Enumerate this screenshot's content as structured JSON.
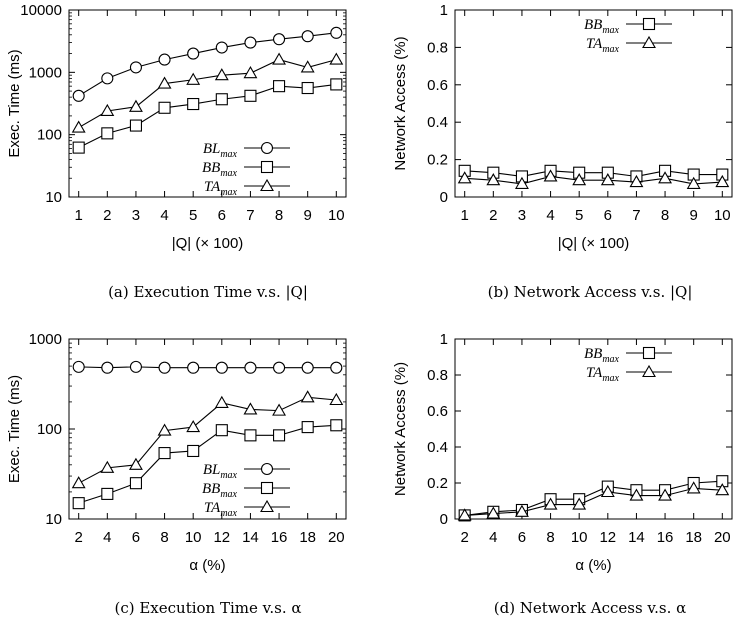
{
  "chart_data": [
    {
      "id": "a",
      "type": "line",
      "caption": "(a) Execution Time v.s. |Q|",
      "ylabel": "Exec. Time (ms)",
      "xlabel": "|Q| (× 100)",
      "y_scale": "log",
      "ylim": [
        10,
        10000
      ],
      "yticks": [
        10,
        100,
        1000,
        10000
      ],
      "ytick_labels": [
        "10",
        "100",
        "1000",
        "10000"
      ],
      "xticks": [
        1,
        2,
        3,
        4,
        5,
        6,
        7,
        8,
        9,
        10
      ],
      "xtick_labels": [
        "1",
        "2",
        "3",
        "4",
        "5",
        "6",
        "7",
        "8",
        "9",
        "10"
      ],
      "legend_position": "bottom-right",
      "series": [
        {
          "name": "BL",
          "sub": "max",
          "marker": "circle",
          "x": [
            1,
            2,
            3,
            4,
            5,
            6,
            7,
            8,
            9,
            10
          ],
          "y": [
            420,
            800,
            1200,
            1600,
            2000,
            2500,
            3000,
            3400,
            3800,
            4300
          ]
        },
        {
          "name": "BB",
          "sub": "max",
          "marker": "square",
          "x": [
            1,
            2,
            3,
            4,
            5,
            6,
            7,
            8,
            9,
            10
          ],
          "y": [
            62,
            105,
            140,
            270,
            310,
            370,
            420,
            600,
            560,
            640
          ]
        },
        {
          "name": "TA",
          "sub": "max",
          "marker": "triangle",
          "x": [
            1,
            2,
            3,
            4,
            5,
            6,
            7,
            8,
            9,
            10
          ],
          "y": [
            130,
            240,
            280,
            660,
            760,
            900,
            970,
            1600,
            1200,
            1600
          ]
        }
      ]
    },
    {
      "id": "b",
      "type": "line",
      "caption": "(b) Network Access v.s. |Q|",
      "ylabel": "Network Access (%)",
      "xlabel": "|Q| (× 100)",
      "y_scale": "linear",
      "ylim": [
        0,
        1
      ],
      "yticks": [
        0,
        0.2,
        0.4,
        0.6,
        0.8,
        1
      ],
      "ytick_labels": [
        "0",
        "0.2",
        "0.4",
        "0.6",
        "0.8",
        "1"
      ],
      "xticks": [
        1,
        2,
        3,
        4,
        5,
        6,
        7,
        8,
        9,
        10
      ],
      "xtick_labels": [
        "1",
        "2",
        "3",
        "4",
        "5",
        "6",
        "7",
        "8",
        "9",
        "10"
      ],
      "legend_position": "top-right",
      "series": [
        {
          "name": "BB",
          "sub": "max",
          "marker": "square",
          "x": [
            1,
            2,
            3,
            4,
            5,
            6,
            7,
            8,
            9,
            10
          ],
          "y": [
            0.14,
            0.13,
            0.11,
            0.14,
            0.13,
            0.13,
            0.11,
            0.14,
            0.12,
            0.12
          ]
        },
        {
          "name": "TA",
          "sub": "max",
          "marker": "triangle",
          "x": [
            1,
            2,
            3,
            4,
            5,
            6,
            7,
            8,
            9,
            10
          ],
          "y": [
            0.1,
            0.09,
            0.07,
            0.11,
            0.09,
            0.09,
            0.08,
            0.1,
            0.07,
            0.08
          ]
        }
      ]
    },
    {
      "id": "c",
      "type": "line",
      "caption": "(c) Execution Time v.s. α",
      "ylabel": "Exec. Time (ms)",
      "xlabel": "α (%)",
      "y_scale": "log",
      "ylim": [
        10,
        1000
      ],
      "yticks": [
        10,
        100,
        1000
      ],
      "ytick_labels": [
        "10",
        "100",
        "1000"
      ],
      "xticks": [
        2,
        4,
        6,
        8,
        10,
        12,
        14,
        16,
        18,
        20
      ],
      "xtick_labels": [
        "2",
        "4",
        "6",
        "8",
        "10",
        "12",
        "14",
        "16",
        "18",
        "20"
      ],
      "legend_position": "bottom-right",
      "series": [
        {
          "name": "BL",
          "sub": "max",
          "marker": "circle",
          "x": [
            2,
            4,
            6,
            8,
            10,
            12,
            14,
            16,
            18,
            20
          ],
          "y": [
            490,
            480,
            490,
            480,
            480,
            480,
            480,
            480,
            480,
            480
          ]
        },
        {
          "name": "BB",
          "sub": "max",
          "marker": "square",
          "x": [
            2,
            4,
            6,
            8,
            10,
            12,
            14,
            16,
            18,
            20
          ],
          "y": [
            15,
            19,
            25,
            54,
            57,
            97,
            85,
            85,
            105,
            110
          ]
        },
        {
          "name": "TA",
          "sub": "max",
          "marker": "triangle",
          "x": [
            2,
            4,
            6,
            8,
            10,
            12,
            14,
            16,
            18,
            20
          ],
          "y": [
            25,
            37,
            40,
            96,
            105,
            195,
            165,
            160,
            225,
            210
          ]
        }
      ]
    },
    {
      "id": "d",
      "type": "line",
      "caption": "(d) Network Access v.s. α",
      "ylabel": "Network Access (%)",
      "xlabel": "α (%)",
      "y_scale": "linear",
      "ylim": [
        0,
        1
      ],
      "yticks": [
        0,
        0.2,
        0.4,
        0.6,
        0.8,
        1
      ],
      "ytick_labels": [
        "0",
        "0.2",
        "0.4",
        "0.6",
        "0.8",
        "1"
      ],
      "xticks": [
        2,
        4,
        6,
        8,
        10,
        12,
        14,
        16,
        18,
        20
      ],
      "xtick_labels": [
        "2",
        "4",
        "6",
        "8",
        "10",
        "12",
        "14",
        "16",
        "18",
        "20"
      ],
      "legend_position": "top-right",
      "series": [
        {
          "name": "BB",
          "sub": "max",
          "marker": "square",
          "x": [
            2,
            4,
            6,
            8,
            10,
            12,
            14,
            16,
            18,
            20
          ],
          "y": [
            0.02,
            0.04,
            0.05,
            0.11,
            0.11,
            0.18,
            0.16,
            0.16,
            0.2,
            0.21
          ]
        },
        {
          "name": "TA",
          "sub": "max",
          "marker": "triangle",
          "x": [
            2,
            4,
            6,
            8,
            10,
            12,
            14,
            16,
            18,
            20
          ],
          "y": [
            0.02,
            0.03,
            0.04,
            0.08,
            0.08,
            0.15,
            0.13,
            0.13,
            0.17,
            0.16
          ]
        }
      ]
    }
  ]
}
